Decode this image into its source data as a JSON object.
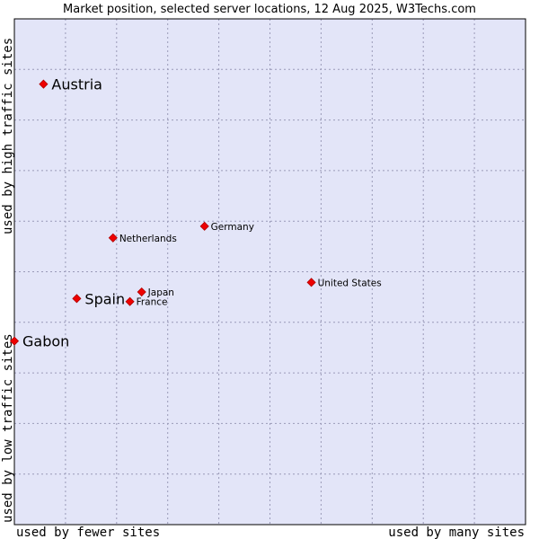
{
  "chart_data": {
    "type": "scatter",
    "title": "Market position, selected server locations, 12 Aug 2025, W3Techs.com",
    "xlabel_left": "used by fewer sites",
    "xlabel_right": "used by many sites",
    "ylabel_bottom": "used by low traffic sites",
    "ylabel_top": "used by high traffic sites",
    "xlim": [
      0,
      1
    ],
    "ylim": [
      0,
      1
    ],
    "grid": true,
    "colors": {
      "plot_background": "#e3e5f8",
      "grid": "#9a9ab8",
      "point": "#ee0000",
      "frame": "#000000"
    },
    "points": [
      {
        "label": "Austria",
        "x": 0.057,
        "y": 0.871,
        "emphasis": true
      },
      {
        "label": "Germany",
        "x": 0.372,
        "y": 0.59,
        "emphasis": false
      },
      {
        "label": "Netherlands",
        "x": 0.193,
        "y": 0.567,
        "emphasis": false
      },
      {
        "label": "United States",
        "x": 0.581,
        "y": 0.479,
        "emphasis": false
      },
      {
        "label": "Japan",
        "x": 0.249,
        "y": 0.46,
        "emphasis": false
      },
      {
        "label": "Spain",
        "x": 0.122,
        "y": 0.447,
        "emphasis": true
      },
      {
        "label": "France",
        "x": 0.226,
        "y": 0.441,
        "emphasis": false
      },
      {
        "label": "Gabon",
        "x": 0.0,
        "y": 0.363,
        "emphasis": true
      }
    ]
  }
}
